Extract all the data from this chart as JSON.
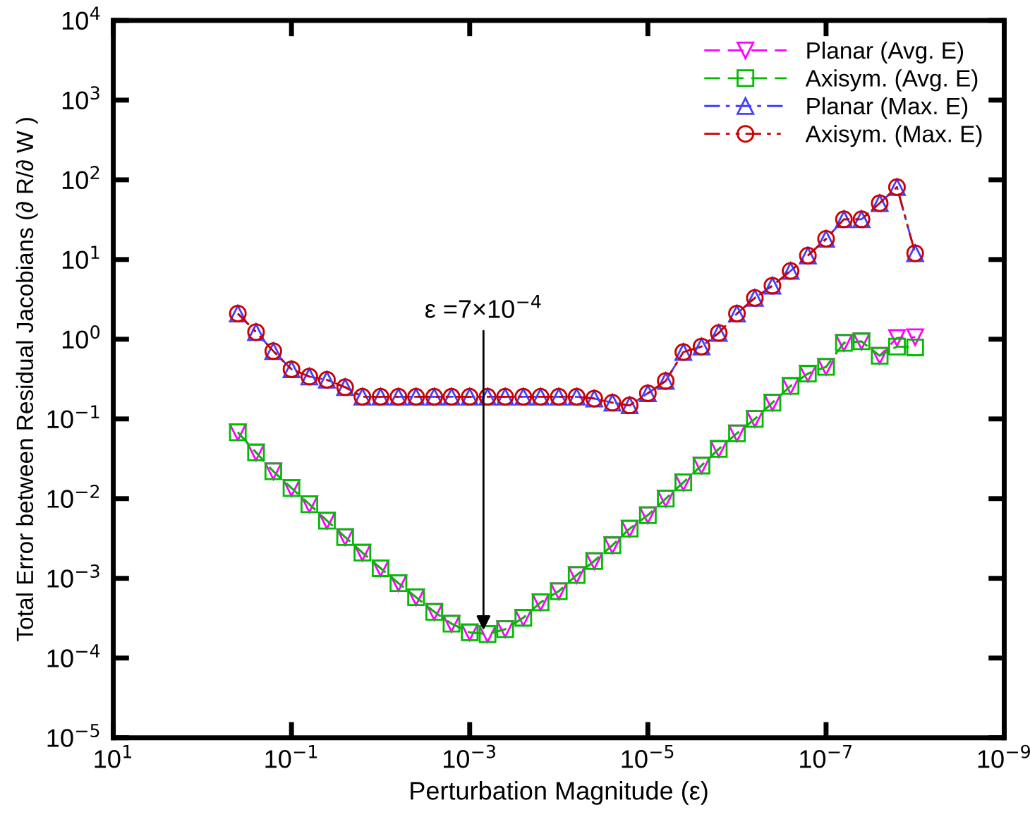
{
  "chart_data": {
    "type": "line",
    "xlabel": "Perturbation Magnitude (ε)",
    "ylabel": "Total Error between Residual Jacobians (∂ R/∂ W )",
    "log": "xy",
    "x": [
      0.4,
      0.25,
      0.16,
      0.1,
      0.063,
      0.04,
      0.025,
      0.016,
      0.01,
      0.0063,
      0.004,
      0.0025,
      0.0016,
      0.001,
      0.00063,
      0.0004,
      0.00025,
      0.00016,
      0.0001,
      6.3e-05,
      4e-05,
      2.5e-05,
      1.6e-05,
      1e-05,
      6.3e-06,
      4e-06,
      2.5e-06,
      1.6e-06,
      1e-06,
      6.3e-07,
      4e-07,
      2.5e-07,
      1.6e-07,
      1e-07,
      6.3e-08,
      4e-08,
      2.5e-08,
      1.6e-08,
      1e-08
    ],
    "series": [
      {
        "name": "Planar (Avg. E)",
        "color": "#ff00ff",
        "marker": "triangle_down",
        "line_style": "dashed",
        "values": [
          0.068,
          0.038,
          0.022,
          0.0136,
          0.0085,
          0.0053,
          0.0033,
          0.0021,
          0.00134,
          0.00087,
          0.00058,
          0.00038,
          0.00027,
          0.00021,
          0.0002,
          0.00023,
          0.00032,
          0.0005,
          0.00069,
          0.0011,
          0.00165,
          0.0026,
          0.0042,
          0.0062,
          0.01,
          0.016,
          0.026,
          0.042,
          0.066,
          0.1,
          0.16,
          0.26,
          0.37,
          0.45,
          0.9,
          0.94,
          0.62,
          1.04,
          1.06
        ]
      },
      {
        "name": "Axisym. (Avg. E)",
        "color": "#00bb00",
        "marker": "square",
        "line_style": "dashed",
        "values": [
          0.068,
          0.038,
          0.022,
          0.0136,
          0.0085,
          0.0053,
          0.0033,
          0.0021,
          0.00134,
          0.00087,
          0.00058,
          0.00038,
          0.00027,
          0.00021,
          0.0002,
          0.00023,
          0.00032,
          0.0005,
          0.00069,
          0.0011,
          0.00165,
          0.0026,
          0.0042,
          0.0062,
          0.01,
          0.016,
          0.026,
          0.042,
          0.066,
          0.1,
          0.16,
          0.26,
          0.37,
          0.45,
          0.9,
          0.94,
          0.62,
          0.81,
          0.79
        ]
      },
      {
        "name": "Planar (Max. E)",
        "color": "#4040ff",
        "marker": "triangle",
        "line_style": "dashdot",
        "values": [
          2.1,
          1.23,
          0.71,
          0.42,
          0.34,
          0.31,
          0.25,
          0.19,
          0.19,
          0.19,
          0.19,
          0.19,
          0.19,
          0.19,
          0.19,
          0.19,
          0.19,
          0.19,
          0.19,
          0.19,
          0.18,
          0.16,
          0.148,
          0.21,
          0.3,
          0.69,
          0.81,
          1.2,
          2.1,
          3.3,
          4.7,
          7.2,
          11.2,
          18.2,
          32,
          32,
          51,
          81,
          12
        ]
      },
      {
        "name": "Axisym. (Max. E)",
        "color": "#cc0000",
        "marker": "circle",
        "line_style": "dashdotdot",
        "values": [
          2.1,
          1.23,
          0.71,
          0.42,
          0.34,
          0.31,
          0.25,
          0.19,
          0.19,
          0.19,
          0.19,
          0.19,
          0.19,
          0.19,
          0.19,
          0.19,
          0.19,
          0.19,
          0.19,
          0.19,
          0.18,
          0.16,
          0.148,
          0.21,
          0.3,
          0.69,
          0.81,
          1.2,
          2.1,
          3.3,
          4.7,
          7.2,
          11.2,
          18.2,
          32,
          32,
          51,
          81,
          12
        ]
      }
    ],
    "xlim": [
      10,
      1e-09
    ],
    "xticks": [
      {
        "value": 10,
        "label": "10$^{1}$"
      },
      {
        "value": 0.1,
        "label": "10$^{−1}$"
      },
      {
        "value": 0.001,
        "label": "10$^{−3}$"
      },
      {
        "value": 1e-05,
        "label": "10$^{−5}$"
      },
      {
        "value": 1e-07,
        "label": "10$^{−7}$"
      },
      {
        "value": 1e-09,
        "label": "10$^{−9}$"
      }
    ],
    "ylim": [
      1e-05,
      10000.0
    ],
    "yticks": [
      {
        "value": 1e-05,
        "label": "10$^{−5}$"
      },
      {
        "value": 0.0001,
        "label": "10$^{−4}$"
      },
      {
        "value": 0.001,
        "label": "10$^{−3}$"
      },
      {
        "value": 0.01,
        "label": "10$^{−2}$"
      },
      {
        "value": 0.1,
        "label": "10$^{−1}$"
      },
      {
        "value": 1,
        "label": "10$^{0}$"
      },
      {
        "value": 10,
        "label": "10$^{1}$"
      },
      {
        "value": 100,
        "label": "10$^{2}$"
      },
      {
        "value": 1000,
        "label": "10$^{3}$"
      },
      {
        "value": 10000,
        "label": "10$^{4}$"
      }
    ],
    "annotations": [
      {
        "text": "ε =7×10$^{−4}$",
        "x": 0.0007,
        "y": 0.0002
      }
    ],
    "grid": false,
    "legend": "top right"
  }
}
